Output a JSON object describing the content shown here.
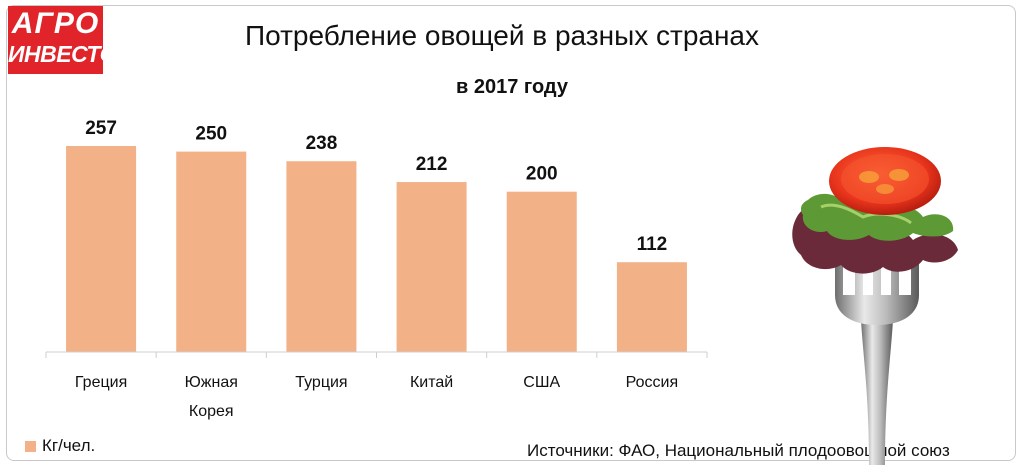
{
  "logo": {
    "line1": "АГРО",
    "line2": "ИНВЕСТОР"
  },
  "header": {
    "title": "Потребление овощей в разных странах",
    "subtitle": "в 2017 году"
  },
  "legend": {
    "label": "Кг/чел.",
    "color": "#f2b186"
  },
  "source": "Источники: ФАО, Национальный плодоовощной союз",
  "illustration_icon": "fork-with-salad-and-tomato-icon",
  "chart_data": {
    "type": "bar",
    "categories": [
      [
        "Греция"
      ],
      [
        "Южная",
        "Корея"
      ],
      [
        "Турция"
      ],
      [
        "Китай"
      ],
      [
        "США"
      ],
      [
        "Россия"
      ]
    ],
    "values": [
      257,
      250,
      238,
      212,
      200,
      112
    ],
    "bar_color": "#f2b186",
    "ylim": [
      0,
      257
    ],
    "grid": false,
    "legend_position": "bottom-left"
  }
}
